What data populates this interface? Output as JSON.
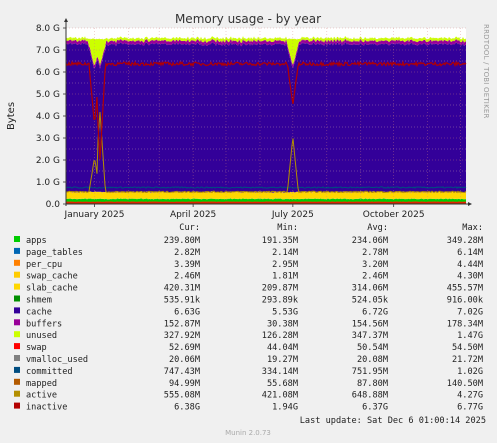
{
  "title": "Memory usage - by year",
  "ylabel": "Bytes",
  "side_note": "RRDTOOL / TOBI OETIKER",
  "munin_version": "Munin 2.0.73",
  "last_update": "Last update: Sat Dec  6 01:00:14 2025",
  "columns": [
    "Cur:",
    "Min:",
    "Avg:",
    "Max:"
  ],
  "chart_data": {
    "type": "area",
    "title": "Memory usage - by year",
    "ylabel": "Bytes",
    "xlabel": "",
    "ylim": [
      0,
      8.0
    ],
    "yunit": "G",
    "y_ticks": [
      "0.0",
      "1.0 G",
      "2.0 G",
      "3.0 G",
      "4.0 G",
      "5.0 G",
      "6.0 G",
      "7.0 G",
      "8.0 G"
    ],
    "x_ticks": [
      "January 2025",
      "April 2025",
      "July 2025",
      "October 2025"
    ],
    "grid": true,
    "legend_placement": "bottom",
    "total_memory_G": 7.5,
    "stack_order": [
      "apps",
      "page_tables",
      "per_cpu",
      "swap_cache",
      "slab_cache",
      "cache",
      "buffers",
      "unused"
    ],
    "typical_stack_G": {
      "apps": 0.23,
      "page_tables": 0.003,
      "per_cpu": 0.003,
      "swap_cache": 0.002,
      "slab_cache": 0.31,
      "cache": 6.72,
      "buffers": 0.15,
      "unused": 0.35
    },
    "lines_typical_G": {
      "swap": 0.05,
      "committed": 0.75,
      "mapped": 0.09,
      "active": 0.55,
      "inactive": 6.37
    },
    "events": [
      {
        "date": "2025-01-01",
        "cache_drop_to_G": 5.53,
        "active_peak_G": 2.1,
        "inactive_drop_to_G": 3.6
      },
      {
        "date": "2025-01-06",
        "cache_drop_to_G": 5.6,
        "active_peak_G": 4.2,
        "inactive_drop_to_G": 2.0
      },
      {
        "date": "2025-07-01",
        "cache_drop_to_G": 5.6,
        "active_peak_G": 3.05,
        "inactive_drop_to_G": 4.5
      }
    ],
    "series": [
      {
        "name": "apps",
        "color": "#00cc00",
        "cur": "239.80M",
        "min": "191.35M",
        "avg": "234.06M",
        "max": "349.28M"
      },
      {
        "name": "page_tables",
        "color": "#0066b3",
        "cur": "2.82M",
        "min": "2.14M",
        "avg": "2.78M",
        "max": "6.14M"
      },
      {
        "name": "per_cpu",
        "color": "#ff8000",
        "cur": "3.39M",
        "min": "2.95M",
        "avg": "3.20M",
        "max": "4.44M"
      },
      {
        "name": "swap_cache",
        "color": "#ffcc00",
        "cur": "2.46M",
        "min": "1.81M",
        "avg": "2.46M",
        "max": "4.30M"
      },
      {
        "name": "slab_cache",
        "color": "#ffd700",
        "cur": "420.31M",
        "min": "209.87M",
        "avg": "314.06M",
        "max": "455.57M"
      },
      {
        "name": "shmem",
        "color": "#008f00",
        "cur": "535.91k",
        "min": "293.89k",
        "avg": "524.05k",
        "max": "916.00k"
      },
      {
        "name": "cache",
        "color": "#330099",
        "cur": "6.63G",
        "min": "5.53G",
        "avg": "6.72G",
        "max": "7.02G"
      },
      {
        "name": "buffers",
        "color": "#990099",
        "cur": "152.87M",
        "min": "30.38M",
        "avg": "154.56M",
        "max": "178.34M"
      },
      {
        "name": "unused",
        "color": "#ccff00",
        "cur": "327.92M",
        "min": "126.28M",
        "avg": "347.37M",
        "max": "1.47G"
      },
      {
        "name": "swap",
        "color": "#ff0000",
        "cur": "52.69M",
        "min": "44.04M",
        "avg": "50.54M",
        "max": "54.50M"
      },
      {
        "name": "vmalloc_used",
        "color": "#808080",
        "cur": "20.06M",
        "min": "19.27M",
        "avg": "20.08M",
        "max": "21.72M"
      },
      {
        "name": "committed",
        "color": "#004d80",
        "cur": "747.43M",
        "min": "334.14M",
        "avg": "751.95M",
        "max": "1.02G"
      },
      {
        "name": "mapped",
        "color": "#b35a00",
        "cur": "94.99M",
        "min": "55.68M",
        "avg": "87.80M",
        "max": "140.50M"
      },
      {
        "name": "active",
        "color": "#b38f00",
        "cur": "555.08M",
        "min": "421.08M",
        "avg": "648.88M",
        "max": "4.27G"
      },
      {
        "name": "inactive",
        "color": "#b30000",
        "cur": "6.38G",
        "min": "1.94G",
        "avg": "6.37G",
        "max": "6.77G"
      }
    ]
  }
}
